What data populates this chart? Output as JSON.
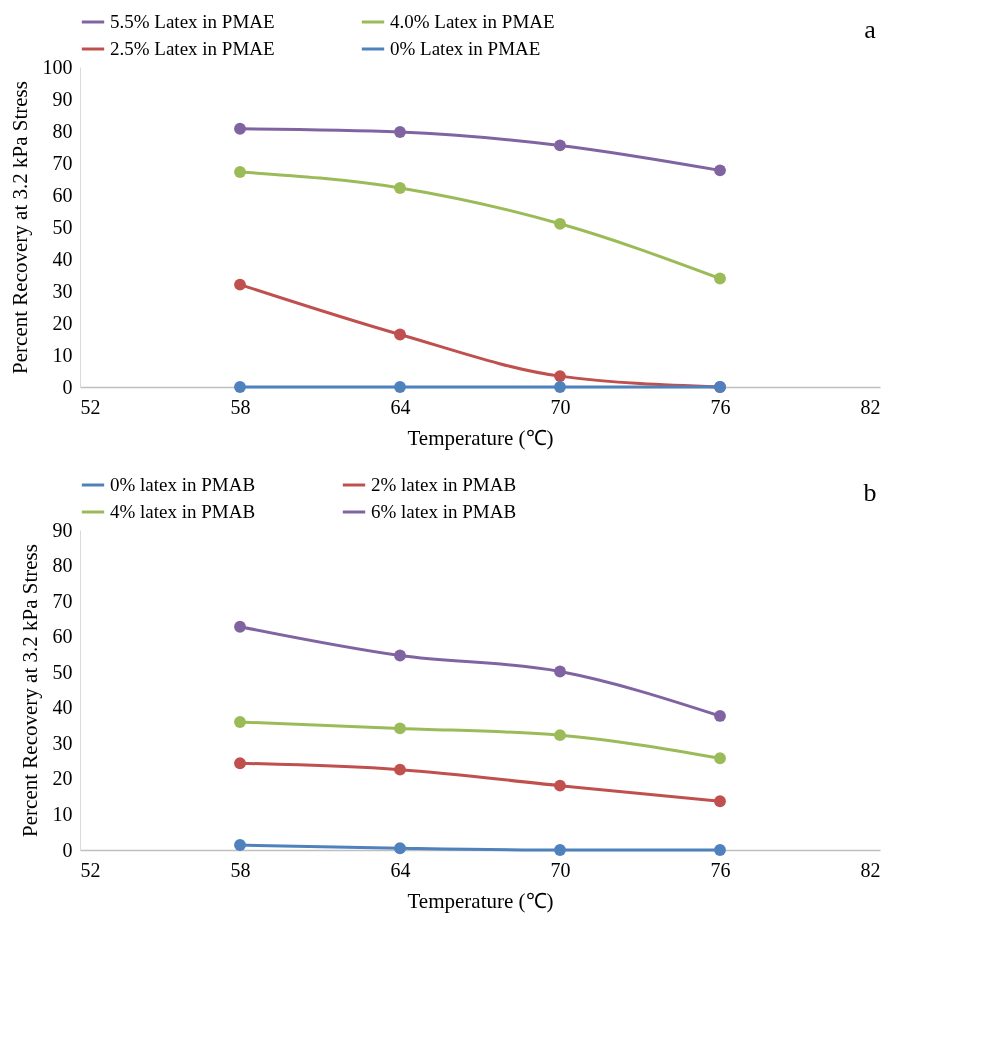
{
  "chart_data": [
    {
      "type": "line",
      "annotations": [
        "a"
      ],
      "xlabel": "Temperature (℃)",
      "ylabel": "Percent Recovery at 3.2 kPa Stress",
      "x": [
        58,
        64,
        70,
        76
      ],
      "xlim": [
        52,
        82
      ],
      "xticks": [
        52,
        58,
        64,
        70,
        76,
        82
      ],
      "ylim": [
        0,
        100
      ],
      "yticks": [
        0,
        10,
        20,
        30,
        40,
        50,
        60,
        70,
        80,
        90,
        100
      ],
      "grid": false,
      "legend": "top",
      "marker": "circle",
      "line_style": "solid",
      "series": [
        {
          "name": "5.5% Latex in PMAE",
          "color": "#8064a2",
          "values": [
            80.7,
            79.7,
            75.5,
            67.7
          ]
        },
        {
          "name": "4.0% Latex in PMAE",
          "color": "#9bbb59",
          "values": [
            67.2,
            62.2,
            51.0,
            33.9
          ]
        },
        {
          "name": "2.5% Latex in PMAE",
          "color": "#c0504d",
          "values": [
            32.0,
            16.4,
            3.4,
            0
          ]
        },
        {
          "name": "0% Latex in PMAE",
          "color": "#4f81bd",
          "values": [
            0,
            0,
            0,
            0
          ]
        }
      ]
    },
    {
      "type": "line",
      "annotations": [
        "b"
      ],
      "xlabel": "Temperature (℃)",
      "ylabel": "Percent Recovery at 3.2 kPa Stress",
      "x": [
        58,
        64,
        70,
        76
      ],
      "xlim": [
        52,
        82
      ],
      "xticks": [
        52,
        58,
        64,
        70,
        76,
        82
      ],
      "ylim": [
        0,
        90
      ],
      "yticks": [
        0,
        10,
        20,
        30,
        40,
        50,
        60,
        70,
        80,
        90
      ],
      "grid": false,
      "legend": "top",
      "marker": "circle",
      "line_style": "solid",
      "series": [
        {
          "name": "0% latex in PMAB",
          "color": "#4f81bd",
          "values": [
            1.4,
            0.5,
            0,
            0
          ]
        },
        {
          "name": "2% latex in PMAB",
          "color": "#c0504d",
          "values": [
            24.4,
            22.6,
            18.1,
            13.7
          ]
        },
        {
          "name": "4% latex in PMAB",
          "color": "#9bbb59",
          "values": [
            36.0,
            34.2,
            32.3,
            25.8
          ]
        },
        {
          "name": "6% latex in PMAB",
          "color": "#8064a2",
          "values": [
            62.8,
            54.7,
            50.2,
            37.7
          ]
        }
      ]
    }
  ]
}
